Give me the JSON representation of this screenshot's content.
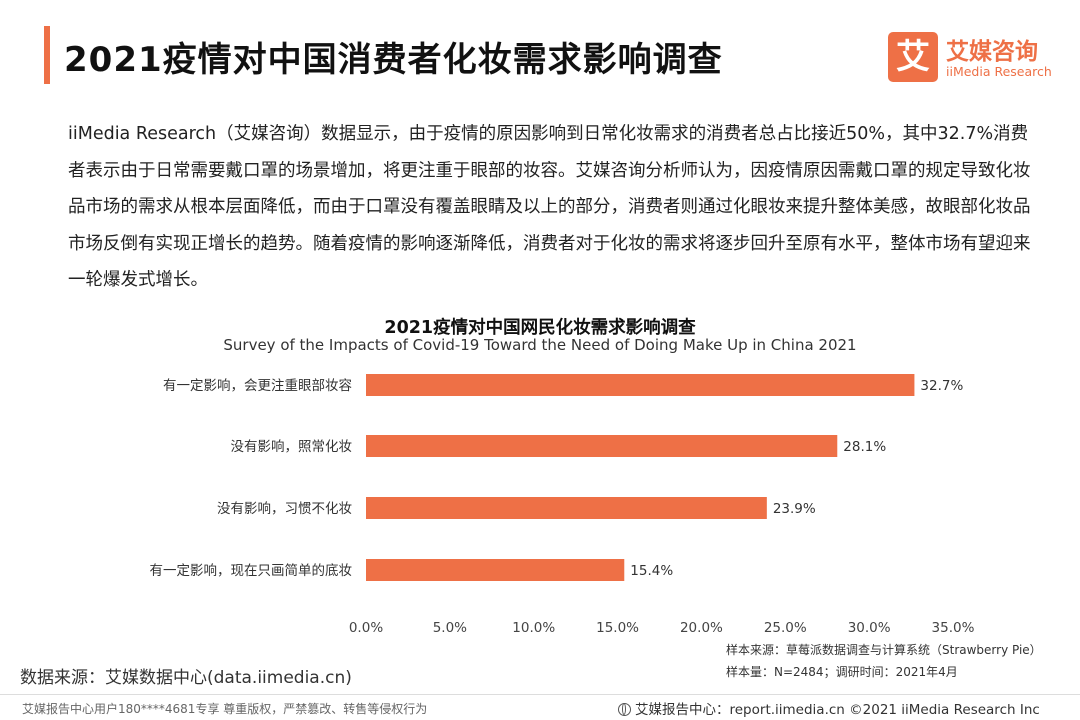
{
  "header": {
    "title": "2021疫情对中国消费者化妆需求影响调查",
    "logo_mark": "艾",
    "logo_name": "艾媒咨询",
    "logo_sub": "iiMedia Research"
  },
  "intro_text": "iiMedia Research（艾媒咨询）数据显示，由于疫情的原因影响到日常化妆需求的消费者总占比接近50%，其中32.7%消费者表示由于日常需要戴口罩的场景增加，将更注重于眼部的妆容。艾媒咨询分析师认为，因疫情原因需戴口罩的规定导致化妆品市场的需求从根本层面降低，而由于口罩没有覆盖眼睛及以上的部分，消费者则通过化眼妆来提升整体美感，故眼部化妆品市场反倒有实现正增长的趋势。随着疫情的影响逐渐降低，消费者对于化妆的需求将逐步回升至原有水平，整体市场有望迎来一轮爆发式增长。",
  "chart_data": {
    "type": "bar",
    "orientation": "horizontal",
    "title": "2021疫情对中国网民化妆需求影响调查",
    "subtitle": "Survey of the Impacts of Covid-19 Toward the Need of Doing Make Up in China 2021",
    "categories": [
      "有一定影响，会更注重眼部妆容",
      "没有影响，照常化妆",
      "没有影响，习惯不化妆",
      "有一定影响，现在只画简单的底妆"
    ],
    "values": [
      32.7,
      28.1,
      23.9,
      15.4
    ],
    "value_labels": [
      "32.7%",
      "28.1%",
      "23.9%",
      "15.4%"
    ],
    "xlim": [
      0,
      35
    ],
    "xticks": [
      0,
      5,
      10,
      15,
      20,
      25,
      30,
      35
    ],
    "xtick_labels": [
      "0.0%",
      "5.0%",
      "10.0%",
      "15.0%",
      "20.0%",
      "25.0%",
      "30.0%",
      "35.0%"
    ],
    "bar_color": "#ee7046",
    "grid": false
  },
  "notes": {
    "sample_source": "样本来源：草莓派数据调查与计算系统（Strawberry Pie）",
    "sample_size": "样本量：N=2484；调研时间：2021年4月"
  },
  "source": "数据来源：艾媒数据中心(data.iimedia.cn)",
  "footer": {
    "left": "艾媒报告中心用户180****4681专享 尊重版权，严禁篡改、转售等侵权行为",
    "right": "艾媒报告中心：report.iimedia.cn   ©2021  iiMedia Research  Inc"
  },
  "colors": {
    "accent": "#ee7046"
  }
}
